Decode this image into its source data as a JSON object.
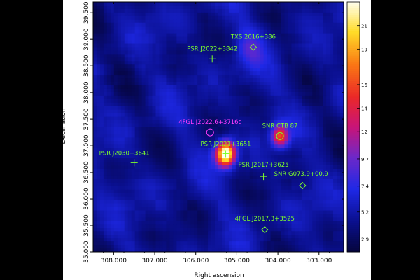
{
  "chart_data": {
    "type": "heatmap",
    "title": "",
    "xlabel": "Right ascension",
    "ylabel": "Declination",
    "xlim": [
      308.5,
      302.4
    ],
    "ylim": [
      35.0,
      39.7
    ],
    "x_ticks": [
      {
        "value": 308.0,
        "label": "308.000"
      },
      {
        "value": 307.0,
        "label": "307.000"
      },
      {
        "value": 306.0,
        "label": "306.000"
      },
      {
        "value": 305.0,
        "label": "305.000"
      },
      {
        "value": 304.0,
        "label": "304.000"
      },
      {
        "value": 303.0,
        "label": "303.000"
      }
    ],
    "y_ticks": [
      {
        "value": 35.0,
        "label": "35.000"
      },
      {
        "value": 35.5,
        "label": "35.500"
      },
      {
        "value": 36.0,
        "label": "36.000"
      },
      {
        "value": 36.5,
        "label": "36.500"
      },
      {
        "value": 37.0,
        "label": "37.000"
      },
      {
        "value": 37.5,
        "label": "37.500"
      },
      {
        "value": 38.0,
        "label": "38.000"
      },
      {
        "value": 38.5,
        "label": "38.500"
      },
      {
        "value": 39.0,
        "label": "39.000"
      },
      {
        "value": 39.5,
        "label": "39.500"
      }
    ],
    "colorbar": {
      "min": 1.8,
      "max": 23,
      "ticks": [
        {
          "value": 2.9,
          "label": "2.9"
        },
        {
          "value": 5.2,
          "label": "5.2"
        },
        {
          "value": 7.4,
          "label": "7.4"
        },
        {
          "value": 9.7,
          "label": "9.7"
        },
        {
          "value": 12,
          "label": "12"
        },
        {
          "value": 14,
          "label": "14"
        },
        {
          "value": 16,
          "label": "16"
        },
        {
          "value": 19,
          "label": "19"
        },
        {
          "value": 21,
          "label": "21"
        }
      ]
    },
    "emission_peaks": [
      {
        "ra": 305.27,
        "dec": 36.85,
        "amplitude": 21.5,
        "sigma_deg": 0.16
      },
      {
        "ra": 303.95,
        "dec": 37.18,
        "amplitude": 11.5,
        "sigma_deg": 0.14
      },
      {
        "ra": 304.7,
        "dec": 38.85,
        "amplitude": 3.2,
        "sigma_deg": 0.25
      }
    ],
    "background_level": 4.6,
    "sources": [
      {
        "label": "TXS 2016+386",
        "ra": 304.6,
        "dec": 38.85,
        "marker": "diamond",
        "color": "#7dff2b"
      },
      {
        "label": "PSR J2022+3842",
        "ra": 305.6,
        "dec": 38.63,
        "marker": "cross",
        "color": "#7dff2b"
      },
      {
        "label": "4FGL J2022.6+3716c",
        "ra": 305.65,
        "dec": 37.25,
        "marker": "circle",
        "color": "#ff3cff"
      },
      {
        "label": "SNR CTB 87",
        "ra": 303.95,
        "dec": 37.18,
        "marker": "circle",
        "color": "#7dff2b"
      },
      {
        "label": "PSR J2021+3651",
        "ra": 305.27,
        "dec": 36.85,
        "marker": "cross",
        "color": "#7dff2b"
      },
      {
        "label": "PSR J2030+3641",
        "ra": 307.5,
        "dec": 36.68,
        "marker": "cross",
        "color": "#7dff2b"
      },
      {
        "label": "PSR J2017+3625",
        "ra": 304.35,
        "dec": 36.42,
        "marker": "cross",
        "color": "#7dff2b"
      },
      {
        "label": "SNR G073.9+00.9",
        "ra": 303.4,
        "dec": 36.25,
        "marker": "diamond",
        "color": "#7dff2b"
      },
      {
        "label": "4FGL J2017.3+3525",
        "ra": 304.32,
        "dec": 35.42,
        "marker": "diamond",
        "color": "#7dff2b"
      }
    ]
  }
}
